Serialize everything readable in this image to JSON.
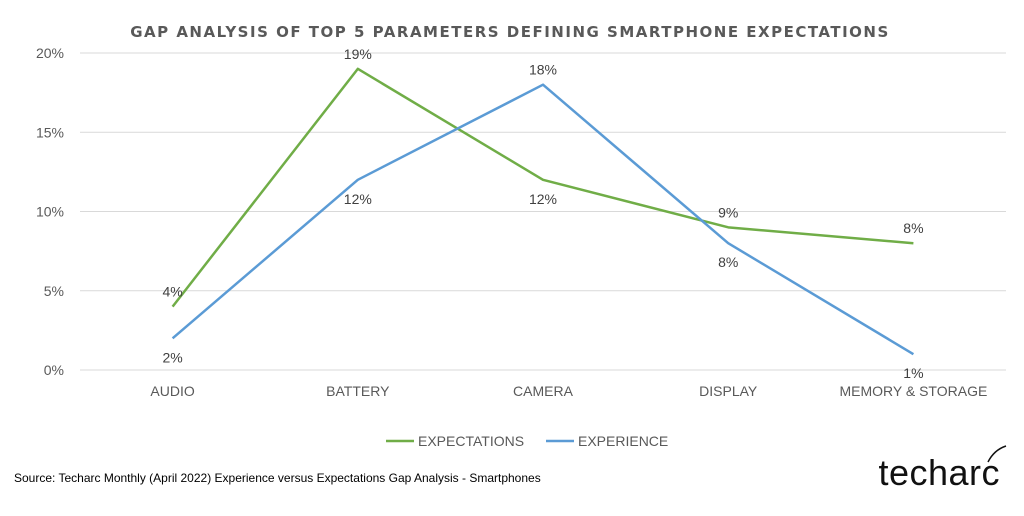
{
  "chart_data": {
    "type": "line",
    "title": "GAP ANALYSIS OF TOP 5 PARAMETERS DEFINING SMARTPHONE EXPECTATIONS",
    "categories": [
      "AUDIO",
      "BATTERY",
      "CAMERA",
      "DISPLAY",
      "MEMORY & STORAGE"
    ],
    "series": [
      {
        "name": "EXPECTATIONS",
        "color": "#70ad47",
        "values": [
          4,
          19,
          12,
          9,
          8
        ],
        "labels": [
          "4%",
          "19%",
          "12%",
          "9%",
          "8%"
        ]
      },
      {
        "name": "EXPERIENCE",
        "color": "#5b9bd5",
        "values": [
          2,
          12,
          18,
          8,
          1
        ],
        "labels": [
          "2%",
          "12%",
          "18%",
          "8%",
          "1%"
        ]
      }
    ],
    "ylim": [
      0,
      20
    ],
    "yticks": [
      0,
      5,
      10,
      15,
      20
    ],
    "ytick_labels": [
      "0%",
      "5%",
      "10%",
      "15%",
      "20%"
    ],
    "grid": true,
    "legend_position": "bottom"
  },
  "source": "Source: Techarc Monthly (April 2022) Experience versus Expectations Gap Analysis - Smartphones",
  "logo": "techarc"
}
